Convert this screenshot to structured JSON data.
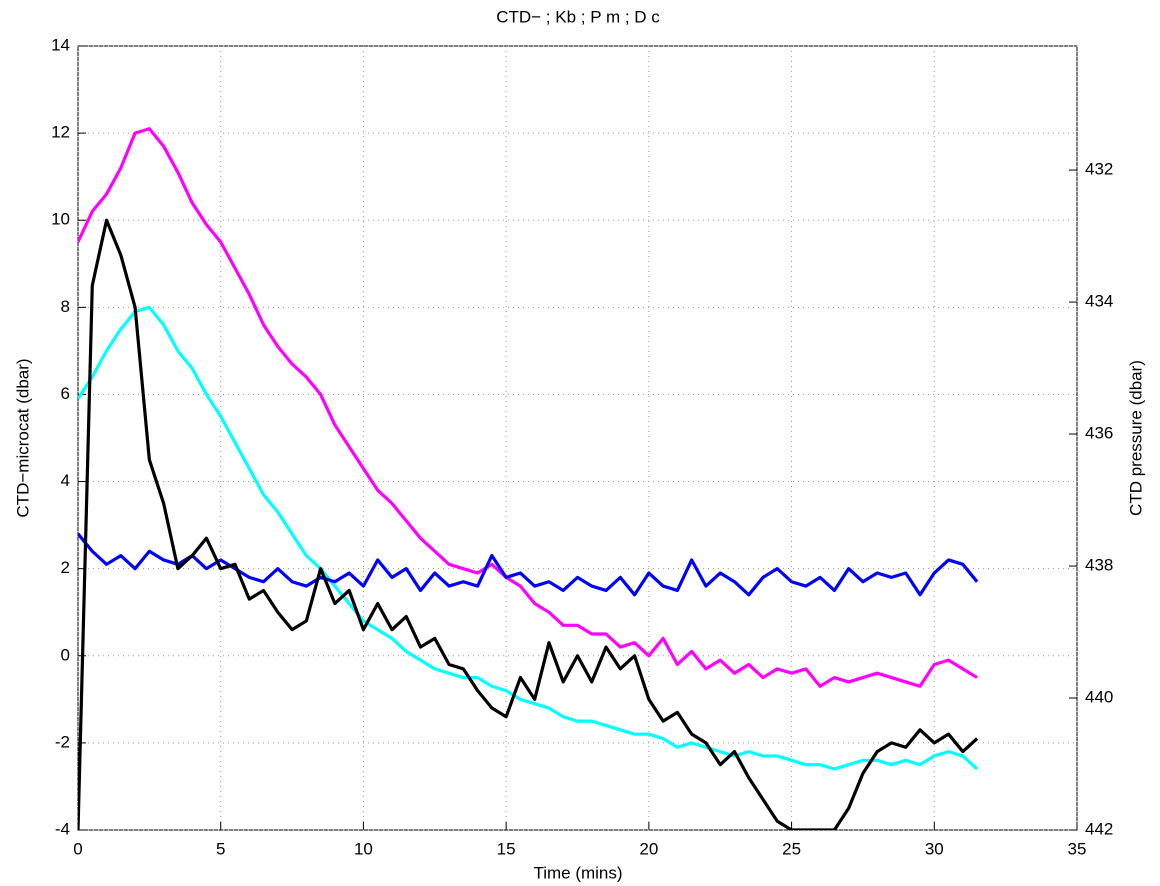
{
  "chart_data": {
    "type": "line",
    "title": "CTD− ; Kb ; P m ; D c",
    "xlabel": "Time (mins)",
    "ylabel": "CTD−microcat (dbar)",
    "y2label": "CTD pressure (dbar)",
    "x": [
      0,
      0.5,
      1,
      1.5,
      2,
      2.5,
      3,
      3.5,
      4,
      4.5,
      5,
      5.5,
      6,
      6.5,
      7,
      7.5,
      8,
      8.5,
      9,
      9.5,
      10,
      10.5,
      11,
      11.5,
      12,
      12.5,
      13,
      13.5,
      14,
      14.5,
      15,
      15.5,
      16,
      16.5,
      17,
      17.5,
      18,
      18.5,
      19,
      19.5,
      20,
      20.5,
      21,
      21.5,
      22,
      22.5,
      23,
      23.5,
      24,
      24.5,
      25,
      25.5,
      26,
      26.5,
      27,
      27.5,
      28,
      28.5,
      29,
      29.5,
      30,
      30.5,
      31,
      31.5
    ],
    "series": [
      {
        "color": "#ff00ff",
        "values": [
          9.5,
          10.2,
          10.6,
          11.2,
          12.0,
          12.1,
          11.7,
          11.1,
          10.4,
          9.9,
          9.5,
          8.9,
          8.3,
          7.6,
          7.1,
          6.7,
          6.4,
          6.0,
          5.3,
          4.8,
          4.3,
          3.8,
          3.5,
          3.1,
          2.7,
          2.4,
          2.1,
          2.0,
          1.9,
          2.1,
          1.8,
          1.6,
          1.2,
          1.0,
          0.7,
          0.7,
          0.5,
          0.5,
          0.2,
          0.3,
          0.0,
          0.4,
          -0.2,
          0.1,
          -0.3,
          -0.1,
          -0.4,
          -0.2,
          -0.5,
          -0.3,
          -0.4,
          -0.3,
          -0.7,
          -0.5,
          -0.6,
          -0.5,
          -0.4,
          -0.5,
          -0.6,
          -0.7,
          -0.2,
          -0.1,
          -0.3,
          -0.5
        ]
      },
      {
        "color": "#00ffff",
        "values": [
          5.9,
          6.4,
          7.0,
          7.5,
          7.9,
          8.0,
          7.6,
          7.0,
          6.6,
          6.0,
          5.5,
          4.9,
          4.3,
          3.7,
          3.3,
          2.8,
          2.3,
          2.0,
          1.6,
          1.2,
          0.8,
          0.6,
          0.4,
          0.1,
          -0.1,
          -0.3,
          -0.4,
          -0.5,
          -0.5,
          -0.7,
          -0.8,
          -1.0,
          -1.1,
          -1.2,
          -1.4,
          -1.5,
          -1.5,
          -1.6,
          -1.7,
          -1.8,
          -1.8,
          -1.9,
          -2.1,
          -2.0,
          -2.1,
          -2.2,
          -2.3,
          -2.2,
          -2.3,
          -2.3,
          -2.4,
          -2.5,
          -2.5,
          -2.6,
          -2.5,
          -2.4,
          -2.4,
          -2.5,
          -2.4,
          -2.5,
          -2.3,
          -2.2,
          -2.3,
          -2.6
        ]
      },
      {
        "color": "#0000ff",
        "values": [
          2.8,
          2.4,
          2.1,
          2.3,
          2.0,
          2.4,
          2.2,
          2.1,
          2.3,
          2.0,
          2.2,
          2.0,
          1.8,
          1.7,
          2.0,
          1.7,
          1.6,
          1.8,
          1.7,
          1.9,
          1.6,
          2.2,
          1.8,
          2.0,
          1.5,
          1.9,
          1.6,
          1.7,
          1.6,
          2.3,
          1.8,
          1.9,
          1.6,
          1.7,
          1.5,
          1.8,
          1.6,
          1.5,
          1.8,
          1.4,
          1.9,
          1.6,
          1.5,
          2.2,
          1.6,
          1.9,
          1.7,
          1.4,
          1.8,
          2.0,
          1.7,
          1.6,
          1.8,
          1.5,
          2.0,
          1.7,
          1.9,
          1.8,
          1.9,
          1.4,
          1.9,
          2.2,
          2.1,
          1.7
        ]
      },
      {
        "color": "#000000",
        "values": [
          -4.0,
          8.5,
          10.0,
          9.2,
          8.0,
          4.5,
          3.5,
          2.0,
          2.3,
          2.7,
          2.0,
          2.1,
          1.3,
          1.5,
          1.0,
          0.6,
          0.8,
          2.0,
          1.2,
          1.5,
          0.6,
          1.2,
          0.6,
          0.9,
          0.2,
          0.4,
          -0.2,
          -0.3,
          -0.8,
          -1.2,
          -1.4,
          -0.5,
          -1.0,
          0.3,
          -0.6,
          0.0,
          -0.6,
          0.2,
          -0.3,
          0.0,
          -1.0,
          -1.5,
          -1.3,
          -1.8,
          -2.0,
          -2.5,
          -2.2,
          -2.8,
          -3.3,
          -3.8,
          -4.0,
          -4.0,
          -4.0,
          -4.0,
          -3.5,
          -2.7,
          -2.2,
          -2.0,
          -2.1,
          -1.7,
          -2.0,
          -1.8,
          -2.2,
          -1.9
        ]
      }
    ],
    "xlim": [
      0,
      35
    ],
    "xticks": [
      0,
      5,
      10,
      15,
      20,
      25,
      30,
      35
    ],
    "ylim": [
      -4,
      14
    ],
    "yticks": [
      -4,
      -2,
      0,
      2,
      4,
      6,
      8,
      10,
      12,
      14
    ],
    "y2lim": [
      442,
      430.12
    ],
    "y2ticks": [
      432,
      434,
      436,
      438,
      440,
      442
    ],
    "grid": true
  }
}
